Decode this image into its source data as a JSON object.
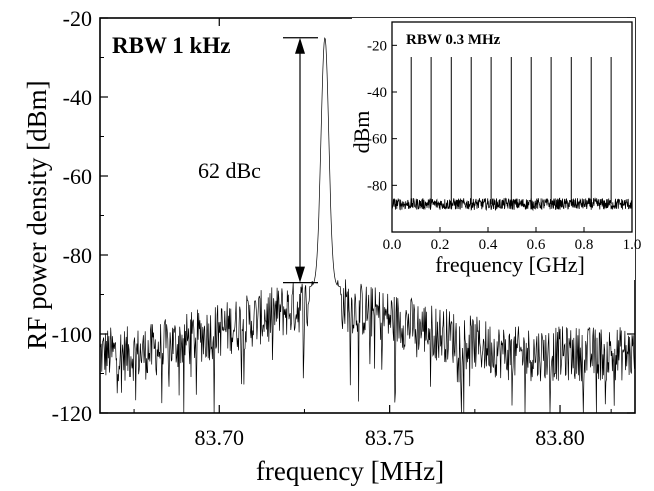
{
  "chart_data": [
    {
      "type": "line",
      "xlabel": "frequency [MHz]",
      "ylabel": "RF power density [dBm]",
      "xlim": [
        83.665,
        83.822
      ],
      "ylim": [
        -120,
        -20
      ],
      "xticks": [
        "83.70",
        "83.75",
        "83.80"
      ],
      "xtick_values": [
        83.7,
        83.75,
        83.8
      ],
      "yticks": [
        "-20",
        "-40",
        "-60",
        "-80",
        "-100",
        "-120"
      ],
      "ytick_values": [
        -20,
        -40,
        -60,
        -80,
        -100,
        -120
      ],
      "peak": {
        "x": 83.731,
        "y": -25
      },
      "noise_floor": -105,
      "annotation_label": "RBW 1 kHz",
      "arrow_label": "62 dBc",
      "arrow_top": -25,
      "arrow_bottom": -87
    },
    {
      "type": "line",
      "xlabel": "frequency [GHz]",
      "ylabel": "dBm",
      "xlim": [
        0.0,
        1.0
      ],
      "ylim": [
        -100,
        -10
      ],
      "xticks": [
        "0.0",
        "0.2",
        "0.4",
        "0.6",
        "0.8",
        "1.0"
      ],
      "xtick_values": [
        0.0,
        0.2,
        0.4,
        0.6,
        0.8,
        1.0
      ],
      "yticks": [
        "-20",
        "-40",
        "-60",
        "-80"
      ],
      "ytick_values": [
        -20,
        -40,
        -60,
        -80
      ],
      "peaks_x": [
        0.08,
        0.163,
        0.247,
        0.33,
        0.413,
        0.497,
        0.58,
        0.663,
        0.747,
        0.83,
        0.913
      ],
      "peak_level": -25,
      "noise_floor": -88,
      "annotation_label": "RBW 0.3 MHz"
    }
  ]
}
